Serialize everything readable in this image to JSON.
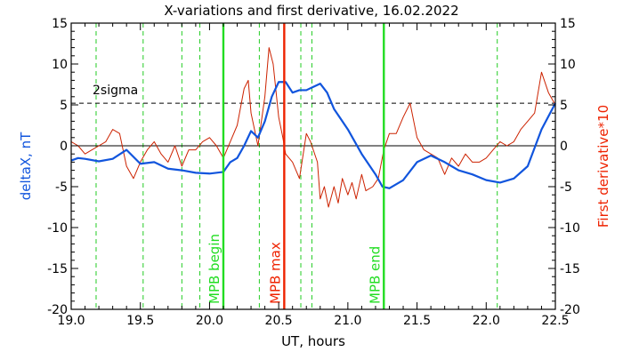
{
  "chart_data": {
    "type": "line",
    "title": "X-variations and first derivative, 16.02.2022",
    "xlabel": "UT, hours",
    "ylabel_left": "deltaX, nT",
    "ylabel_right": "First derivative*10",
    "xlim": [
      19.0,
      22.5
    ],
    "ylim": [
      -20,
      15
    ],
    "x_ticks": [
      "19.0",
      "19.5",
      "20.0",
      "20.5",
      "21.0",
      "21.5",
      "22.0",
      "22.5"
    ],
    "y_ticks": [
      "15",
      "10",
      "5",
      "0",
      "-5",
      "-10",
      "-15",
      "-20"
    ],
    "zero_line": 0,
    "sigma": {
      "label": "2sigma",
      "value": 5.2
    },
    "green_dashed_lines": [
      19.18,
      19.52,
      19.8,
      19.93,
      20.36,
      20.66,
      20.74,
      22.08
    ],
    "events": [
      {
        "label": "MPB begin",
        "x": 20.1,
        "color": "#22dd22"
      },
      {
        "label": "MPB max",
        "x": 20.54,
        "color": "#ee2200"
      },
      {
        "label": "MPB end",
        "x": 21.26,
        "color": "#22dd22"
      }
    ],
    "series": [
      {
        "role": "deltaX",
        "color": "#1155dd",
        "points": [
          [
            19.0,
            -1.8
          ],
          [
            19.05,
            -1.5
          ],
          [
            19.1,
            -1.6
          ],
          [
            19.2,
            -1.9
          ],
          [
            19.3,
            -1.6
          ],
          [
            19.4,
            -0.5
          ],
          [
            19.5,
            -2.2
          ],
          [
            19.6,
            -2.0
          ],
          [
            19.7,
            -2.8
          ],
          [
            19.8,
            -3.0
          ],
          [
            19.9,
            -3.3
          ],
          [
            20.0,
            -3.4
          ],
          [
            20.1,
            -3.2
          ],
          [
            20.15,
            -2.0
          ],
          [
            20.2,
            -1.5
          ],
          [
            20.25,
            0.0
          ],
          [
            20.3,
            1.8
          ],
          [
            20.35,
            1.0
          ],
          [
            20.4,
            3.0
          ],
          [
            20.45,
            6.0
          ],
          [
            20.5,
            7.8
          ],
          [
            20.55,
            7.8
          ],
          [
            20.6,
            6.5
          ],
          [
            20.65,
            6.8
          ],
          [
            20.7,
            6.8
          ],
          [
            20.75,
            7.2
          ],
          [
            20.8,
            7.6
          ],
          [
            20.85,
            6.5
          ],
          [
            20.9,
            4.5
          ],
          [
            21.0,
            2.0
          ],
          [
            21.1,
            -1.0
          ],
          [
            21.2,
            -3.5
          ],
          [
            21.25,
            -5.0
          ],
          [
            21.3,
            -5.2
          ],
          [
            21.4,
            -4.2
          ],
          [
            21.5,
            -2.0
          ],
          [
            21.6,
            -1.2
          ],
          [
            21.7,
            -2.0
          ],
          [
            21.8,
            -3.0
          ],
          [
            21.9,
            -3.5
          ],
          [
            22.0,
            -4.2
          ],
          [
            22.1,
            -4.5
          ],
          [
            22.2,
            -4.0
          ],
          [
            22.3,
            -2.5
          ],
          [
            22.4,
            2.0
          ],
          [
            22.5,
            5.2
          ]
        ]
      },
      {
        "role": "derivative",
        "color": "#cc2200",
        "points": [
          [
            19.0,
            0.5
          ],
          [
            19.05,
            0.0
          ],
          [
            19.1,
            -1.0
          ],
          [
            19.15,
            -0.5
          ],
          [
            19.2,
            0.0
          ],
          [
            19.25,
            0.5
          ],
          [
            19.3,
            2.0
          ],
          [
            19.35,
            1.5
          ],
          [
            19.4,
            -2.5
          ],
          [
            19.45,
            -4.0
          ],
          [
            19.5,
            -2.0
          ],
          [
            19.55,
            -0.5
          ],
          [
            19.6,
            0.5
          ],
          [
            19.65,
            -1.0
          ],
          [
            19.7,
            -2.0
          ],
          [
            19.75,
            0.0
          ],
          [
            19.8,
            -2.5
          ],
          [
            19.85,
            -0.5
          ],
          [
            19.9,
            -0.5
          ],
          [
            19.95,
            0.5
          ],
          [
            20.0,
            1.0
          ],
          [
            20.05,
            0.0
          ],
          [
            20.1,
            -1.5
          ],
          [
            20.15,
            0.5
          ],
          [
            20.2,
            2.5
          ],
          [
            20.25,
            7.0
          ],
          [
            20.28,
            8.0
          ],
          [
            20.3,
            4.0
          ],
          [
            20.35,
            0.0
          ],
          [
            20.4,
            6.0
          ],
          [
            20.43,
            12.0
          ],
          [
            20.46,
            10.0
          ],
          [
            20.5,
            3.5
          ],
          [
            20.53,
            1.0
          ],
          [
            20.55,
            -1.0
          ],
          [
            20.6,
            -2.0
          ],
          [
            20.65,
            -4.0
          ],
          [
            20.7,
            1.5
          ],
          [
            20.73,
            0.5
          ],
          [
            20.78,
            -2.0
          ],
          [
            20.8,
            -6.5
          ],
          [
            20.83,
            -5.0
          ],
          [
            20.86,
            -7.5
          ],
          [
            20.9,
            -5.0
          ],
          [
            20.93,
            -7.0
          ],
          [
            20.96,
            -4.0
          ],
          [
            21.0,
            -6.0
          ],
          [
            21.03,
            -4.5
          ],
          [
            21.06,
            -6.5
          ],
          [
            21.1,
            -3.5
          ],
          [
            21.13,
            -5.5
          ],
          [
            21.18,
            -5.0
          ],
          [
            21.22,
            -4.0
          ],
          [
            21.26,
            -0.5
          ],
          [
            21.3,
            1.5
          ],
          [
            21.35,
            1.5
          ],
          [
            21.4,
            3.5
          ],
          [
            21.45,
            5.2
          ],
          [
            21.5,
            1.0
          ],
          [
            21.55,
            -0.5
          ],
          [
            21.6,
            -1.0
          ],
          [
            21.65,
            -1.5
          ],
          [
            21.7,
            -3.5
          ],
          [
            21.75,
            -1.5
          ],
          [
            21.8,
            -2.5
          ],
          [
            21.85,
            -1.0
          ],
          [
            21.9,
            -2.0
          ],
          [
            21.95,
            -2.0
          ],
          [
            22.0,
            -1.5
          ],
          [
            22.05,
            -0.5
          ],
          [
            22.1,
            0.5
          ],
          [
            22.15,
            0.0
          ],
          [
            22.2,
            0.5
          ],
          [
            22.25,
            2.0
          ],
          [
            22.3,
            3.0
          ],
          [
            22.35,
            4.0
          ],
          [
            22.4,
            9.0
          ],
          [
            22.45,
            6.5
          ],
          [
            22.5,
            5.0
          ]
        ]
      }
    ]
  }
}
